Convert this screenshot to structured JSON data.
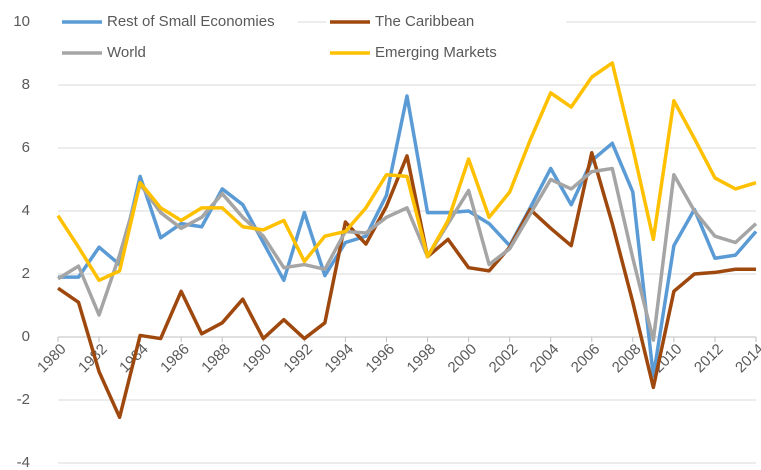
{
  "chart_data": {
    "type": "line",
    "x": [
      1980,
      1981,
      1982,
      1983,
      1984,
      1985,
      1986,
      1987,
      1988,
      1989,
      1990,
      1991,
      1992,
      1993,
      1994,
      1995,
      1996,
      1997,
      1998,
      1999,
      2000,
      2001,
      2002,
      2003,
      2004,
      2005,
      2006,
      2007,
      2008,
      2009,
      2010,
      2011,
      2012,
      2013,
      2014
    ],
    "xlim": [
      1980,
      2014
    ],
    "xticks": [
      1980,
      1982,
      1984,
      1986,
      1988,
      1990,
      1992,
      1994,
      1996,
      1998,
      2000,
      2002,
      2004,
      2006,
      2008,
      2010,
      2012,
      2014
    ],
    "ylim": [
      -4,
      10
    ],
    "yticks": [
      -4,
      -2,
      0,
      2,
      4,
      6,
      8,
      10
    ],
    "grid": true,
    "legend": "top",
    "series": [
      {
        "name": "Rest of Small Economies",
        "color": "#5b9bd5",
        "values": [
          1.9,
          1.9,
          2.85,
          2.3,
          5.1,
          3.15,
          3.6,
          3.5,
          4.7,
          4.2,
          3.0,
          1.8,
          3.95,
          1.95,
          3.0,
          3.2,
          4.5,
          7.65,
          3.95,
          3.95,
          4.0,
          3.6,
          2.9,
          4.1,
          5.35,
          4.2,
          5.6,
          6.15,
          4.6,
          -1.25,
          2.9,
          4.05,
          2.5,
          2.6,
          3.35
        ]
      },
      {
        "name": "The Caribbean",
        "color": "#9e480e",
        "values": [
          1.55,
          1.1,
          -1.1,
          -2.55,
          0.05,
          -0.05,
          1.45,
          0.1,
          0.45,
          1.2,
          -0.05,
          0.55,
          -0.05,
          0.45,
          3.65,
          2.95,
          4.15,
          5.75,
          2.55,
          3.1,
          2.2,
          2.1,
          2.85,
          4.05,
          3.45,
          2.9,
          5.85,
          3.6,
          1.1,
          -1.6,
          1.45,
          2.0,
          2.05,
          2.15,
          2.15
        ]
      },
      {
        "name": "World",
        "color": "#a5a5a5",
        "values": [
          1.85,
          2.25,
          0.7,
          2.6,
          4.85,
          3.95,
          3.45,
          3.8,
          4.55,
          3.8,
          3.2,
          2.2,
          2.3,
          2.15,
          3.35,
          3.3,
          3.8,
          4.1,
          2.55,
          3.6,
          4.65,
          2.3,
          2.8,
          3.9,
          5.0,
          4.7,
          5.25,
          5.35,
          2.5,
          -0.1,
          5.15,
          4.0,
          3.2,
          3.0,
          3.6
        ]
      },
      {
        "name": "Emerging Markets",
        "color": "#ffc000",
        "values": [
          3.85,
          2.85,
          1.8,
          2.1,
          4.9,
          4.1,
          3.7,
          4.1,
          4.1,
          3.5,
          3.4,
          3.7,
          2.4,
          3.2,
          3.35,
          4.1,
          5.15,
          5.1,
          2.55,
          3.7,
          5.65,
          3.8,
          4.6,
          6.25,
          7.75,
          7.3,
          8.25,
          8.7,
          6.0,
          3.1,
          7.5,
          6.3,
          5.05,
          4.7,
          4.9
        ]
      }
    ]
  }
}
